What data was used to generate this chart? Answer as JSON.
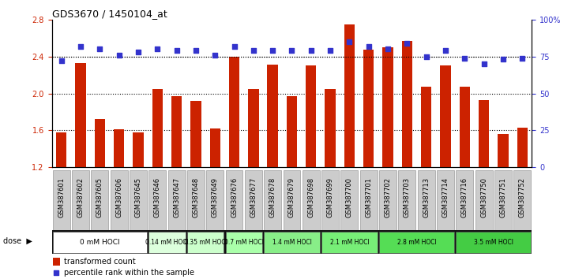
{
  "title": "GDS3670 / 1450104_at",
  "samples": [
    "GSM387601",
    "GSM387602",
    "GSM387605",
    "GSM387606",
    "GSM387645",
    "GSM387646",
    "GSM387647",
    "GSM387648",
    "GSM387649",
    "GSM387676",
    "GSM387677",
    "GSM387678",
    "GSM387679",
    "GSM387698",
    "GSM387699",
    "GSM387700",
    "GSM387701",
    "GSM387702",
    "GSM387703",
    "GSM387713",
    "GSM387714",
    "GSM387716",
    "GSM387750",
    "GSM387751",
    "GSM387752"
  ],
  "bar_values": [
    1.58,
    2.33,
    1.72,
    1.61,
    1.58,
    2.05,
    1.97,
    1.92,
    1.62,
    2.4,
    2.05,
    2.31,
    1.97,
    2.3,
    2.05,
    2.75,
    2.47,
    2.5,
    2.57,
    2.07,
    2.3,
    2.07,
    1.93,
    1.56,
    1.63
  ],
  "percentile_values": [
    72,
    82,
    80,
    76,
    78,
    80,
    79,
    79,
    76,
    82,
    79,
    79,
    79,
    79,
    79,
    85,
    82,
    80,
    84,
    75,
    79,
    74,
    70,
    73,
    74
  ],
  "ylim_left": [
    1.2,
    2.8
  ],
  "ylim_right": [
    0,
    100
  ],
  "yticks_left": [
    1.2,
    1.6,
    2.0,
    2.4,
    2.8
  ],
  "yticks_right": [
    0,
    25,
    50,
    75,
    100
  ],
  "bar_color": "#cc2200",
  "dot_color": "#3333cc",
  "bar_bottom": 1.2,
  "dose_groups": [
    {
      "label": "0 mM HOCl",
      "start": 0,
      "end": 5,
      "color": "#ffffff"
    },
    {
      "label": "0.14 mM HOCl",
      "start": 5,
      "end": 7,
      "color": "#ddffdd"
    },
    {
      "label": "0.35 mM HOCl",
      "start": 7,
      "end": 9,
      "color": "#ccffcc"
    },
    {
      "label": "0.7 mM HOCl",
      "start": 9,
      "end": 11,
      "color": "#aaffaa"
    },
    {
      "label": "1.4 mM HOCl",
      "start": 11,
      "end": 14,
      "color": "#88ee88"
    },
    {
      "label": "2.1 mM HOCl",
      "start": 14,
      "end": 17,
      "color": "#77ee77"
    },
    {
      "label": "2.8 mM HOCl",
      "start": 17,
      "end": 21,
      "color": "#55dd55"
    },
    {
      "label": "3.5 mM HOCl",
      "start": 21,
      "end": 25,
      "color": "#44cc44"
    }
  ],
  "legend_bar_label": "transformed count",
  "legend_dot_label": "percentile rank within the sample",
  "axis_color_left": "#cc2200",
  "axis_color_right": "#3333cc",
  "grid_color": "#000000",
  "sample_box_color": "#cccccc",
  "dose_label": "dose",
  "title_fontsize": 9,
  "tick_fontsize": 7,
  "sample_fontsize": 6,
  "dose_fontsize": 6,
  "legend_fontsize": 7
}
